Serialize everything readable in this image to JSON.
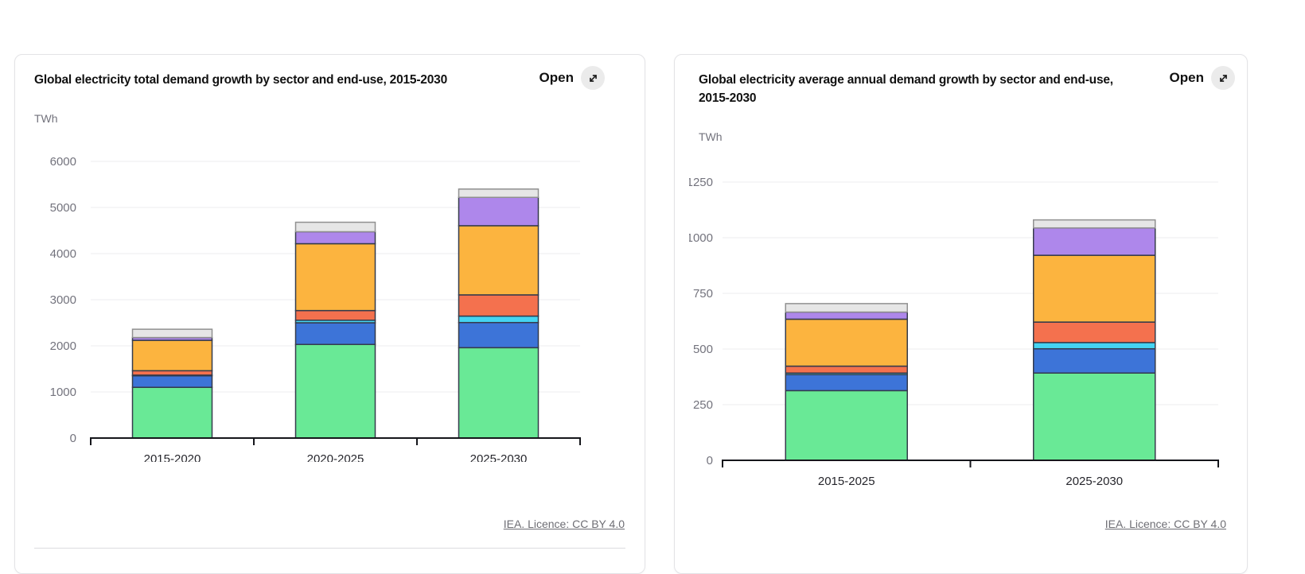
{
  "cards": [
    {
      "title": "Global electricity total demand growth by sector and end-use, 2015-2030",
      "open_label": "Open",
      "unit_label": "TWh",
      "licence_link": "IEA. Licence: CC BY 4.0"
    },
    {
      "title": "Global electricity average annual demand growth by sector and end-use, 2015-2030",
      "open_label": "Open",
      "unit_label": "TWh",
      "licence_link": "IEA. Licence: CC BY 4.0"
    }
  ],
  "colors": {
    "segment_border": "#353b4b",
    "grey_segment_border": "#909090",
    "axis": "#15161b",
    "gridline": "#ededef",
    "tick_text": "#73737d",
    "open_button_bg": "#ebebeb"
  },
  "chart_data": [
    {
      "type": "bar",
      "stacked": true,
      "title": "Global electricity total demand growth by sector and end-use, 2015-2030",
      "ylabel": "TWh",
      "categories": [
        "2015-2020",
        "2020-2025",
        "2025-2030"
      ],
      "series": [
        {
          "name": "green",
          "color": "#69E996",
          "values": [
            1100,
            2030,
            1960
          ]
        },
        {
          "name": "blue",
          "color": "#3D74D8",
          "values": [
            250,
            470,
            545
          ]
        },
        {
          "name": "cyan",
          "color": "#45D4F2",
          "values": [
            15,
            55,
            140
          ]
        },
        {
          "name": "red-orange",
          "color": "#F4714E",
          "values": [
            95,
            210,
            460
          ]
        },
        {
          "name": "orange",
          "color": "#FCB43F",
          "values": [
            660,
            1450,
            1500
          ]
        },
        {
          "name": "purple",
          "color": "#AE87EB",
          "values": [
            60,
            260,
            615
          ]
        },
        {
          "name": "grey",
          "color": "#E6E6E6",
          "values": [
            180,
            205,
            180
          ]
        }
      ],
      "ylim": [
        0,
        6000
      ],
      "ytick_step": 1000,
      "grid": true,
      "legend": false
    },
    {
      "type": "bar",
      "stacked": true,
      "title": "Global electricity average annual demand growth by sector and end-use, 2015-2030",
      "ylabel": "TWh",
      "categories": [
        "2015-2025",
        "2025-2030"
      ],
      "series": [
        {
          "name": "green",
          "color": "#69E996",
          "values": [
            313,
            392
          ]
        },
        {
          "name": "blue",
          "color": "#3D74D8",
          "values": [
            72,
            109
          ]
        },
        {
          "name": "cyan",
          "color": "#45D4F2",
          "values": [
            7,
            28
          ]
        },
        {
          "name": "red-orange",
          "color": "#F4714E",
          "values": [
            31,
            92
          ]
        },
        {
          "name": "orange",
          "color": "#FCB43F",
          "values": [
            211,
            300
          ]
        },
        {
          "name": "purple",
          "color": "#AE87EB",
          "values": [
            32,
            123
          ]
        },
        {
          "name": "grey",
          "color": "#E6E6E6",
          "values": [
            38,
            36
          ]
        }
      ],
      "ylim": [
        0,
        1250
      ],
      "ytick_step": 250,
      "grid": true,
      "legend": false
    }
  ]
}
